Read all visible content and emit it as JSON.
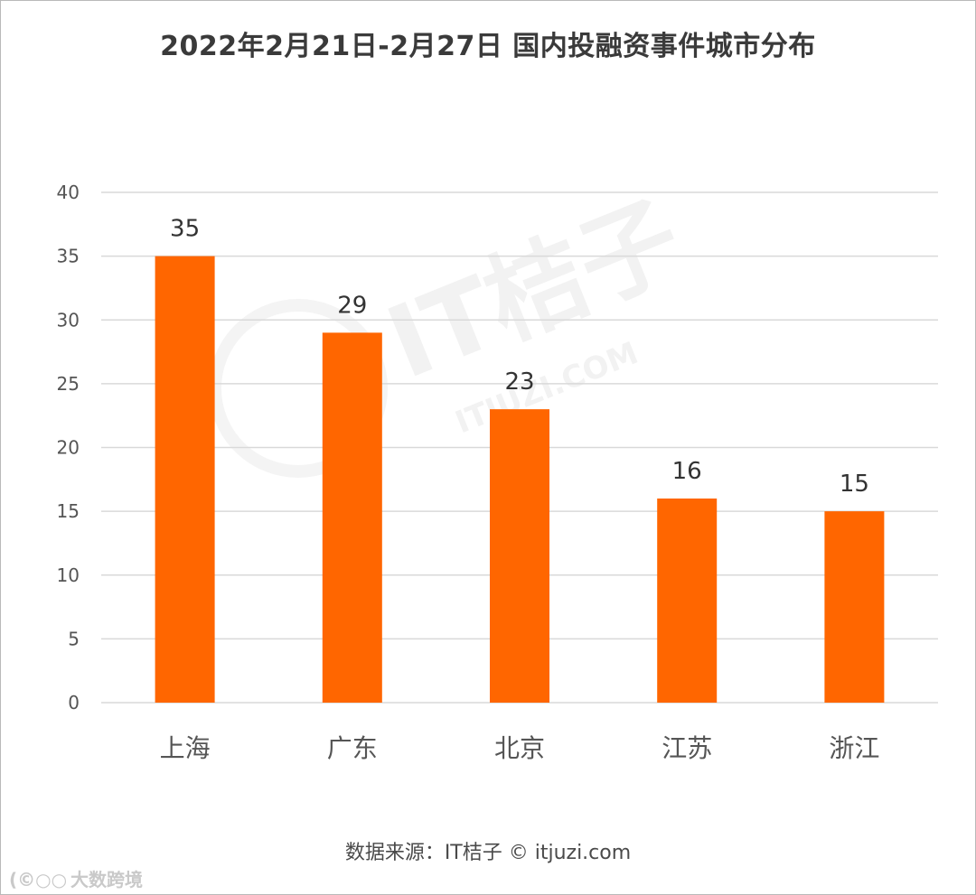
{
  "title": "2022年2月21日-2月27日 国内投融资事件城市分布",
  "source": "数据来源：IT桔子 © itjuzi.com",
  "watermark": {
    "brand": "IT桔子",
    "domain": "ITJUZI.COM"
  },
  "corner_mark": {
    "logo": "(©○○",
    "text": "大数跨境"
  },
  "colors": {
    "bar": "#ff6600",
    "grid": "#d9d9d9",
    "axis_text": "#555555",
    "label_text": "#333333"
  },
  "chart_data": {
    "type": "bar",
    "categories": [
      "上海",
      "广东",
      "北京",
      "江苏",
      "浙江"
    ],
    "values": [
      35,
      29,
      23,
      16,
      15
    ],
    "ylim": [
      0,
      40
    ],
    "yticks": [
      "0",
      "5",
      "10",
      "15",
      "20",
      "25",
      "30",
      "35",
      "40"
    ],
    "grid": true,
    "data_labels": true
  }
}
